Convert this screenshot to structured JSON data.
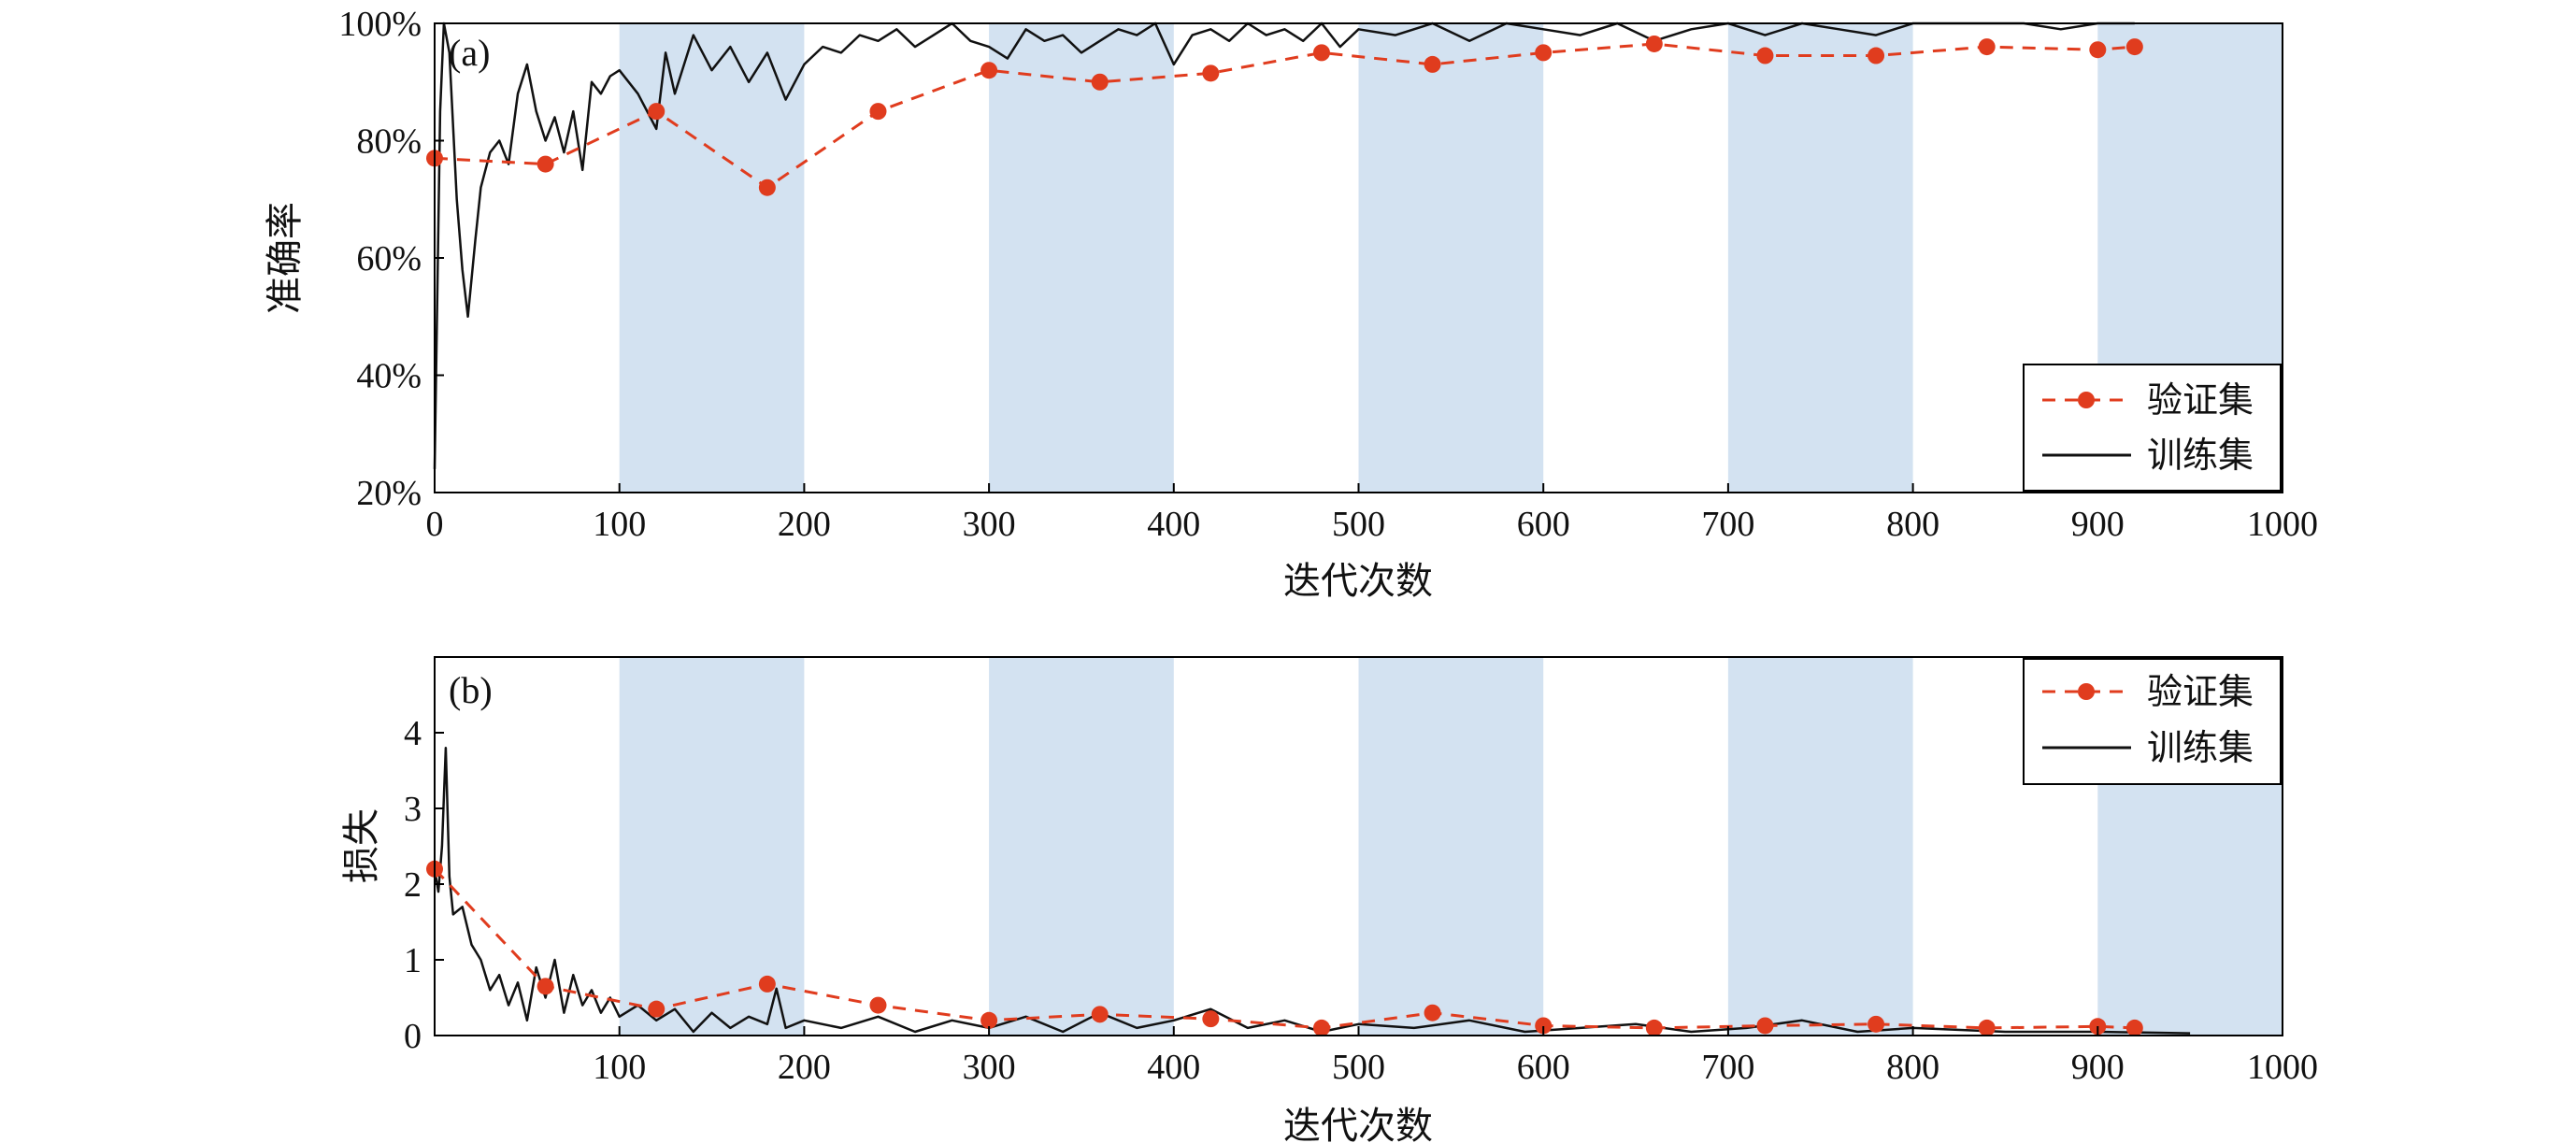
{
  "colors": {
    "band": "#d3e2f1",
    "val": "#e03c1e",
    "train": "#111111",
    "axis": "#000000"
  },
  "chart_data": [
    {
      "type": "line",
      "panel_label": "(a)",
      "xlabel": "迭代次数",
      "ylabel": "准确率",
      "xlim": [
        0,
        1000
      ],
      "ylim": [
        20,
        100
      ],
      "xticks": [
        "0",
        "100",
        "200",
        "300",
        "400",
        "500",
        "600",
        "700",
        "800",
        "900",
        "1000"
      ],
      "yticks": [
        "20%",
        "40%",
        "60%",
        "80%",
        "100%"
      ],
      "ytick_values": [
        20,
        40,
        60,
        80,
        100
      ],
      "shaded_x_ranges": [
        [
          100,
          200
        ],
        [
          300,
          400
        ],
        [
          500,
          600
        ],
        [
          700,
          800
        ],
        [
          900,
          1000
        ]
      ],
      "legend": {
        "position": "bottom-right",
        "entries": [
          "验证集",
          "训练集"
        ]
      },
      "series": [
        {
          "name": "验证集",
          "style": "dashed-markers",
          "x": [
            0,
            60,
            120,
            180,
            240,
            300,
            360,
            420,
            480,
            540,
            600,
            660,
            720,
            780,
            840,
            900,
            920
          ],
          "y": [
            77,
            76,
            85,
            72,
            85,
            92,
            90,
            91.5,
            95,
            93,
            95,
            96.5,
            94.5,
            94.5,
            96,
            95.5,
            96
          ]
        },
        {
          "name": "训练集",
          "style": "solid",
          "x": [
            0,
            3,
            5,
            8,
            12,
            15,
            18,
            22,
            25,
            30,
            35,
            40,
            45,
            50,
            55,
            60,
            65,
            70,
            75,
            80,
            85,
            90,
            95,
            100,
            110,
            120,
            125,
            130,
            140,
            150,
            160,
            170,
            180,
            190,
            200,
            210,
            220,
            230,
            240,
            250,
            260,
            270,
            280,
            290,
            300,
            310,
            320,
            330,
            340,
            350,
            360,
            370,
            380,
            390,
            400,
            410,
            420,
            430,
            440,
            450,
            460,
            470,
            480,
            490,
            500,
            520,
            540,
            560,
            580,
            600,
            620,
            640,
            660,
            680,
            700,
            720,
            740,
            760,
            780,
            800,
            820,
            840,
            860,
            880,
            900,
            920
          ],
          "y": [
            24,
            85,
            100,
            95,
            70,
            58,
            50,
            63,
            72,
            78,
            80,
            76,
            88,
            93,
            85,
            80,
            84,
            78,
            85,
            75,
            90,
            88,
            91,
            92,
            88,
            82,
            95,
            88,
            98,
            92,
            96,
            90,
            95,
            87,
            93,
            96,
            95,
            98,
            97,
            99,
            96,
            98,
            100,
            97,
            96,
            94,
            99,
            97,
            98,
            95,
            97,
            99,
            98,
            100,
            93,
            98,
            99,
            97,
            100,
            98,
            99,
            97,
            100,
            96,
            99,
            98,
            100,
            97,
            100,
            99,
            98,
            100,
            97,
            99,
            100,
            98,
            100,
            99,
            98,
            100,
            100,
            100,
            100,
            99,
            100,
            100
          ]
        }
      ]
    },
    {
      "type": "line",
      "panel_label": "(b)",
      "xlabel": "迭代次数",
      "ylabel": "损失",
      "xlim": [
        0,
        1000
      ],
      "ylim": [
        0,
        5
      ],
      "xticks": [
        "100",
        "200",
        "300",
        "400",
        "500",
        "600",
        "700",
        "800",
        "900",
        "1000"
      ],
      "xtick_values": [
        100,
        200,
        300,
        400,
        500,
        600,
        700,
        800,
        900,
        1000
      ],
      "yticks": [
        "0",
        "1",
        "2",
        "3",
        "4"
      ],
      "ytick_values": [
        0,
        1,
        2,
        3,
        4
      ],
      "shaded_x_ranges": [
        [
          100,
          200
        ],
        [
          300,
          400
        ],
        [
          500,
          600
        ],
        [
          700,
          800
        ],
        [
          900,
          1000
        ]
      ],
      "legend": {
        "position": "top-right",
        "entries": [
          "验证集",
          "训练集"
        ]
      },
      "series": [
        {
          "name": "验证集",
          "style": "dashed-markers",
          "x": [
            0,
            60,
            120,
            180,
            240,
            300,
            360,
            420,
            480,
            540,
            600,
            660,
            720,
            780,
            840,
            900,
            920
          ],
          "y": [
            2.2,
            0.65,
            0.35,
            0.68,
            0.4,
            0.2,
            0.28,
            0.22,
            0.1,
            0.3,
            0.13,
            0.1,
            0.13,
            0.15,
            0.1,
            0.12,
            0.1
          ]
        },
        {
          "name": "训练集",
          "style": "solid",
          "x": [
            0,
            2,
            4,
            6,
            8,
            10,
            15,
            20,
            25,
            30,
            35,
            40,
            45,
            50,
            55,
            60,
            65,
            70,
            75,
            80,
            85,
            90,
            95,
            100,
            110,
            120,
            130,
            140,
            150,
            160,
            170,
            180,
            185,
            190,
            200,
            220,
            240,
            260,
            280,
            300,
            320,
            340,
            360,
            380,
            400,
            420,
            440,
            460,
            480,
            500,
            530,
            560,
            590,
            620,
            650,
            680,
            710,
            740,
            770,
            800,
            850,
            900,
            950
          ],
          "y": [
            2.2,
            1.9,
            2.5,
            3.8,
            2.1,
            1.6,
            1.7,
            1.2,
            1.0,
            0.6,
            0.8,
            0.4,
            0.7,
            0.2,
            0.9,
            0.5,
            1.0,
            0.3,
            0.8,
            0.4,
            0.6,
            0.3,
            0.5,
            0.25,
            0.4,
            0.2,
            0.35,
            0.05,
            0.3,
            0.1,
            0.25,
            0.15,
            0.62,
            0.1,
            0.2,
            0.1,
            0.25,
            0.05,
            0.2,
            0.1,
            0.25,
            0.05,
            0.3,
            0.1,
            0.2,
            0.35,
            0.1,
            0.2,
            0.05,
            0.15,
            0.1,
            0.2,
            0.05,
            0.1,
            0.15,
            0.05,
            0.1,
            0.2,
            0.05,
            0.1,
            0.05,
            0.05,
            0.03
          ]
        }
      ]
    }
  ]
}
